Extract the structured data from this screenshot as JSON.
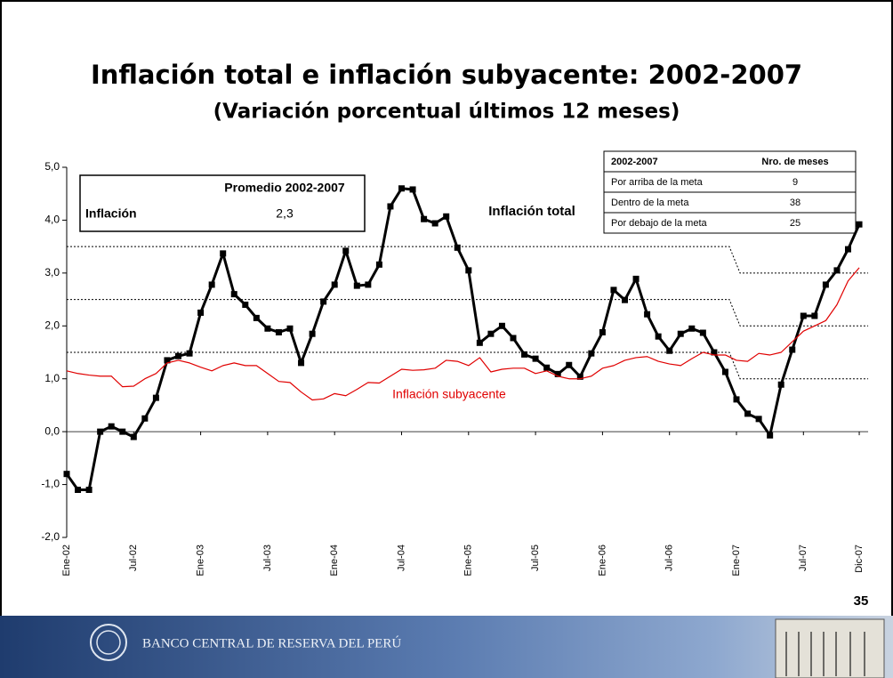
{
  "chart_data": {
    "type": "line",
    "title": "Inflación total e inflación subyacente: 2002-2007",
    "subtitle": "(Variación porcentual últimos 12 meses)",
    "categories": [
      "Ene-02",
      null,
      null,
      null,
      null,
      null,
      "Jul-02",
      null,
      null,
      null,
      null,
      null,
      "Ene-03",
      null,
      null,
      null,
      null,
      null,
      "Jul-03",
      null,
      null,
      null,
      null,
      null,
      "Ene-04",
      null,
      null,
      null,
      null,
      null,
      "Jul-04",
      null,
      null,
      null,
      null,
      null,
      "Ene-05",
      null,
      null,
      null,
      null,
      null,
      "Jul-05",
      null,
      null,
      null,
      null,
      null,
      "Ene-06",
      null,
      null,
      null,
      null,
      null,
      "Jul-06",
      null,
      null,
      null,
      null,
      null,
      "Ene-07",
      null,
      null,
      null,
      null,
      null,
      "Jul-07",
      null,
      null,
      null,
      null,
      "Dic-07"
    ],
    "series": [
      {
        "name": "Inflación total",
        "color": "#000000",
        "markers": true,
        "values": [
          -0.8,
          -1.1,
          -1.1,
          0.0,
          0.1,
          0.0,
          -0.1,
          0.25,
          0.64,
          1.35,
          1.43,
          1.48,
          2.25,
          2.78,
          3.37,
          2.6,
          2.4,
          2.15,
          1.95,
          1.88,
          1.95,
          1.3,
          1.85,
          2.46,
          2.78,
          3.42,
          2.76,
          2.78,
          3.16,
          4.26,
          4.6,
          4.58,
          4.02,
          3.94,
          4.07,
          3.48,
          3.05,
          1.68,
          1.85,
          2.0,
          1.77,
          1.46,
          1.38,
          1.21,
          1.09,
          1.26,
          1.04,
          1.48,
          1.88,
          2.68,
          2.49,
          2.89,
          2.22,
          1.8,
          1.53,
          1.85,
          1.95,
          1.87,
          1.5,
          1.13,
          0.61,
          0.34,
          0.24,
          -0.07,
          0.89,
          1.55,
          2.19,
          2.19,
          2.78,
          3.05,
          3.45,
          3.92
        ]
      },
      {
        "name": "Inflación subyacente",
        "color": "#e00000",
        "markers": false,
        "values": [
          1.15,
          1.1,
          1.07,
          1.05,
          1.05,
          0.85,
          0.86,
          1.0,
          1.1,
          1.3,
          1.35,
          1.3,
          1.22,
          1.15,
          1.25,
          1.3,
          1.25,
          1.25,
          1.1,
          0.95,
          0.93,
          0.75,
          0.6,
          0.62,
          0.72,
          0.68,
          0.8,
          0.93,
          0.92,
          1.05,
          1.18,
          1.16,
          1.17,
          1.2,
          1.35,
          1.33,
          1.25,
          1.4,
          1.13,
          1.18,
          1.2,
          1.2,
          1.1,
          1.15,
          1.05,
          1.0,
          1.0,
          1.05,
          1.2,
          1.25,
          1.35,
          1.4,
          1.42,
          1.33,
          1.28,
          1.25,
          1.38,
          1.5,
          1.45,
          1.45,
          1.35,
          1.33,
          1.48,
          1.45,
          1.5,
          1.7,
          1.9,
          2.0,
          2.1,
          2.4,
          2.85,
          3.1
        ]
      }
    ],
    "target_lines": [
      {
        "values": [
          3.5,
          3.0
        ]
      },
      {
        "values": [
          2.5,
          2.0
        ]
      },
      {
        "values": [
          1.5,
          1.0
        ]
      }
    ],
    "target_change": "Ene-07",
    "ylim": [
      -2,
      5
    ],
    "yticks": [
      {
        "value": -2,
        "label": "-2,0"
      },
      {
        "value": -1,
        "label": "-1,0"
      },
      {
        "value": 0,
        "label": "0,0"
      },
      {
        "value": 1,
        "label": "1,0"
      },
      {
        "value": 2,
        "label": "2,0"
      },
      {
        "value": 3,
        "label": "3,0"
      },
      {
        "value": 4,
        "label": "4,0"
      },
      {
        "value": 5,
        "label": "5,0"
      }
    ],
    "grid": false
  },
  "average_table": {
    "header": "Promedio 2002-2007",
    "row_label": "Inflación",
    "row_value": "2,3"
  },
  "months_table": {
    "header": [
      "2002-2007",
      "Nro. de meses"
    ],
    "rows": [
      [
        "Por arriba de la meta",
        "9"
      ],
      [
        "Dentro de la meta",
        "38"
      ],
      [
        "Por debajo de la meta",
        "25"
      ]
    ]
  },
  "slide": {
    "page_number": "35",
    "footer": "BANCO CENTRAL DE RESERVA DEL PERÚ"
  }
}
